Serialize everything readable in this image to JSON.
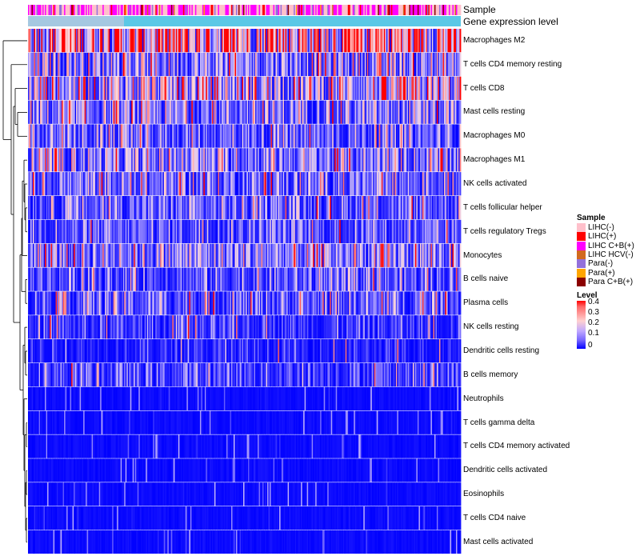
{
  "chart_data": {
    "type": "heatmap",
    "annotations": [
      {
        "name": "Sample"
      },
      {
        "name": "Gene expression level"
      }
    ],
    "rows": [
      {
        "label": "Macrophages M2",
        "mean": 0.3
      },
      {
        "label": "T cells CD4 memory resting",
        "mean": 0.1
      },
      {
        "label": "T cells CD8",
        "mean": 0.15
      },
      {
        "label": "Mast cells resting",
        "mean": 0.08
      },
      {
        "label": "Macrophages M0",
        "mean": 0.06
      },
      {
        "label": "Macrophages M1",
        "mean": 0.09
      },
      {
        "label": "NK cells activated",
        "mean": 0.07
      },
      {
        "label": "T cells follicular helper",
        "mean": 0.06
      },
      {
        "label": "T cells regulatory  Tregs",
        "mean": 0.05
      },
      {
        "label": "Monocytes",
        "mean": 0.1
      },
      {
        "label": "B cells naive",
        "mean": 0.05
      },
      {
        "label": "Plasma cells",
        "mean": 0.06
      },
      {
        "label": "NK cells resting",
        "mean": 0.03
      },
      {
        "label": "Dendritic cells resting",
        "mean": 0.02
      },
      {
        "label": "B cells memory",
        "mean": 0.04
      },
      {
        "label": "Neutrophils",
        "mean": 0.015
      },
      {
        "label": "T cells gamma delta",
        "mean": 0.005
      },
      {
        "label": "T cells CD4 memory activated",
        "mean": 0.006
      },
      {
        "label": "Dendritic cells activated",
        "mean": 0.006
      },
      {
        "label": "Eosinophils",
        "mean": 0.004
      },
      {
        "label": "T cells CD4 naive",
        "mean": 0.006
      },
      {
        "label": "Mast cells activated",
        "mean": 0.008
      }
    ],
    "legend_sample": {
      "title": "Sample",
      "items": [
        {
          "label": "LIHC(-)",
          "color": "#ffc0cb"
        },
        {
          "label": "LIHC(+)",
          "color": "#ff0000"
        },
        {
          "label": "LIHC C+B(+)",
          "color": "#ff00ff"
        },
        {
          "label": "LIHC HCV(-)",
          "color": "#d2691e"
        },
        {
          "label": "Para(-)",
          "color": "#9370db"
        },
        {
          "label": "Para(+)",
          "color": "#ffa500"
        },
        {
          "label": "Para C+B(+)",
          "color": "#8b0000"
        }
      ]
    },
    "legend_level": {
      "title": "Level",
      "ticks": [
        "0.4",
        "0.3",
        "0.2",
        "0.1",
        "0"
      ],
      "range": [
        0,
        0.4
      ]
    },
    "expression_bar_color": "#5bc8e6"
  }
}
